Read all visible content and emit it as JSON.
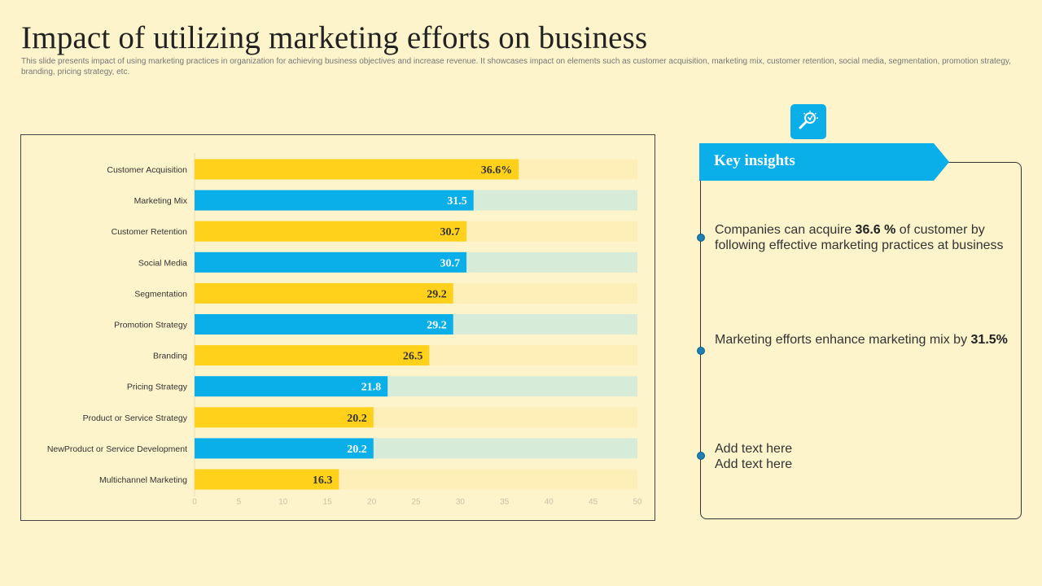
{
  "page": {
    "title": "Impact of utilizing marketing efforts on business",
    "subtitle": "This slide presents impact of using marketing practices in organization for achieving business objectives and increase revenue. It showcases impact on elements such as customer acquisition, marketing mix, customer retention, social media, segmentation, promotion strategy, branding, pricing strategy, etc."
  },
  "colors": {
    "background": "#FDF4CC",
    "accent_blue": "#0AAEE8",
    "bar_yellow": "#FFD11A",
    "track_yellow": "#FEEEB8",
    "track_green": "#D7EBD9",
    "label_dark": "#333333"
  },
  "chart_data": {
    "type": "bar",
    "orientation": "horizontal",
    "categories": [
      "Customer Acquisition",
      "Marketing Mix",
      "Customer Retention",
      "Social Media",
      "Segmentation",
      "Promotion Strategy",
      "Branding",
      "Pricing Strategy",
      "Product or Service Strategy",
      "NewProduct or Service Development",
      "Multichannel Marketing"
    ],
    "values": [
      36.6,
      31.5,
      30.7,
      30.7,
      29.2,
      29.2,
      26.5,
      21.8,
      20.2,
      20.2,
      16.3
    ],
    "data_labels": [
      "36.6%",
      "31.5",
      "30.7",
      "30.7",
      "29.2",
      "29.2",
      "26.5",
      "21.8",
      "20.2",
      "20.2",
      "16.3"
    ],
    "bar_colors": [
      "yellow",
      "blue",
      "yellow",
      "blue",
      "yellow",
      "blue",
      "yellow",
      "blue",
      "yellow",
      "blue",
      "yellow"
    ],
    "xlim": [
      0,
      50
    ],
    "xticks": [
      0,
      5,
      10,
      15,
      20,
      25,
      30,
      35,
      40,
      45,
      50
    ],
    "background_track_max": 50,
    "title": "",
    "xlabel": "",
    "ylabel": ""
  },
  "insights": {
    "icon": "lightbulb-search-icon",
    "heading": "Key insights",
    "items": [
      {
        "pre": "Companies can acquire ",
        "strong": "36.6 %",
        "post": " of customer by following effective marketing practices at business"
      },
      {
        "pre": "Marketing efforts enhance marketing mix by ",
        "strong": "31.5%",
        "post": ""
      },
      {
        "line1": "Add text here",
        "line2": "Add text here"
      }
    ]
  }
}
